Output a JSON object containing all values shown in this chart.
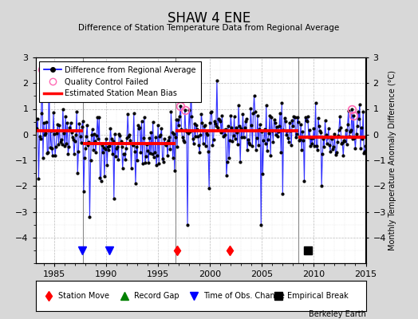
{
  "title": "SHAW 4 ENE",
  "subtitle": "Difference of Station Temperature Data from Regional Average",
  "ylabel": "Monthly Temperature Anomaly Difference (°C)",
  "xlim": [
    1983.2,
    2015.0
  ],
  "ylim": [
    -5,
    3
  ],
  "yticks": [
    -4,
    -3,
    -2,
    -1,
    0,
    1,
    2,
    3
  ],
  "xticks": [
    1985,
    1990,
    1995,
    2000,
    2005,
    2010,
    2015
  ],
  "bg_color": "#d8d8d8",
  "plot_bg_color": "#ffffff",
  "line_color": "#3333ff",
  "dot_color": "#000000",
  "bias_color": "#ff0000",
  "bias_segments": [
    {
      "x": [
        1983.2,
        1987.8
      ],
      "y": [
        0.15,
        0.15
      ]
    },
    {
      "x": [
        1987.8,
        1996.7
      ],
      "y": [
        -0.35,
        -0.35
      ]
    },
    {
      "x": [
        1996.7,
        2008.5
      ],
      "y": [
        0.15,
        0.15
      ]
    },
    {
      "x": [
        2008.5,
        2015.0
      ],
      "y": [
        -0.1,
        -0.1
      ]
    }
  ],
  "break_lines": [
    1987.8,
    1996.7,
    2008.5
  ],
  "station_moves": [
    1996.8,
    2001.9
  ],
  "record_gaps": [],
  "obs_changes": [
    1987.7,
    1990.3
  ],
  "empirical_breaks": [
    2009.4
  ],
  "qc_failed_times": [
    1983.9,
    1997.2,
    1997.6,
    2013.7,
    2013.9
  ],
  "watermark": "Berkeley Earth",
  "seed": 42
}
